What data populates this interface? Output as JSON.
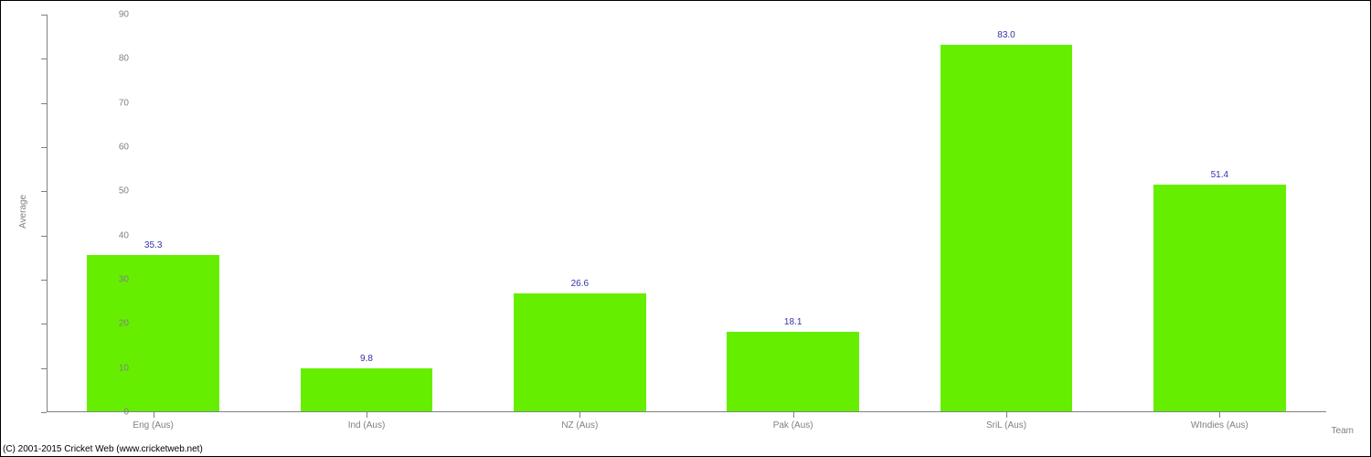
{
  "chart": {
    "type": "bar",
    "categories": [
      "Eng (Aus)",
      "Ind (Aus)",
      "NZ (Aus)",
      "Pak (Aus)",
      "SriL (Aus)",
      "WIndies (Aus)"
    ],
    "values": [
      35.3,
      9.8,
      26.6,
      18.1,
      83.0,
      51.4
    ],
    "value_labels": [
      "35.3",
      "9.8",
      "26.6",
      "18.1",
      "83.0",
      "51.4"
    ],
    "bar_color": "#66ee00",
    "label_color": "#3333aa",
    "axis_color": "#808080",
    "background_color": "#ffffff",
    "ylim": [
      0,
      90
    ],
    "ytick_step": 10,
    "yticks": [
      0,
      10,
      20,
      30,
      40,
      50,
      60,
      70,
      80,
      90
    ],
    "y_axis_title": "Average",
    "x_axis_title": "Team",
    "bar_width_ratio": 0.62,
    "label_fontsize": 10,
    "axis_fontsize": 10
  },
  "copyright": "(C) 2001-2015 Cricket Web (www.cricketweb.net)"
}
